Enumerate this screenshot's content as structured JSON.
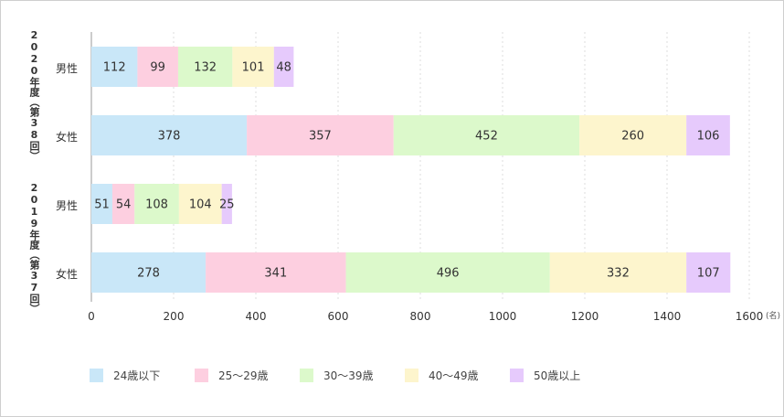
{
  "chart_data": {
    "type": "bar",
    "orientation": "horizontal",
    "stacked": true,
    "groups": [
      {
        "label": "2020年度（第38回）",
        "rows": [
          {
            "category": "男性",
            "values": [
              112,
              99,
              132,
              101,
              48
            ]
          },
          {
            "category": "女性",
            "values": [
              378,
              357,
              452,
              260,
              106
            ]
          }
        ]
      },
      {
        "label": "2019年度（第37回）",
        "rows": [
          {
            "category": "男性",
            "values": [
              51,
              54,
              108,
              104,
              25
            ]
          },
          {
            "category": "女性",
            "values": [
              278,
              341,
              496,
              332,
              107
            ]
          }
        ]
      }
    ],
    "series": [
      {
        "name": "24歳以下",
        "color": "#c9e7f8"
      },
      {
        "name": "25〜29歳",
        "color": "#fdcfe0"
      },
      {
        "name": "30〜39歳",
        "color": "#dcf9cb"
      },
      {
        "name": "40〜49歳",
        "color": "#fdf5cd"
      },
      {
        "name": "50歳以上",
        "color": "#e6cafc"
      }
    ],
    "xlim": [
      0,
      1600
    ],
    "x_ticks": [
      0,
      200,
      400,
      600,
      800,
      1000,
      1200,
      1400,
      1600
    ],
    "x_unit": "(名)",
    "grid": "vertical-dashed",
    "legend_position": "bottom"
  }
}
